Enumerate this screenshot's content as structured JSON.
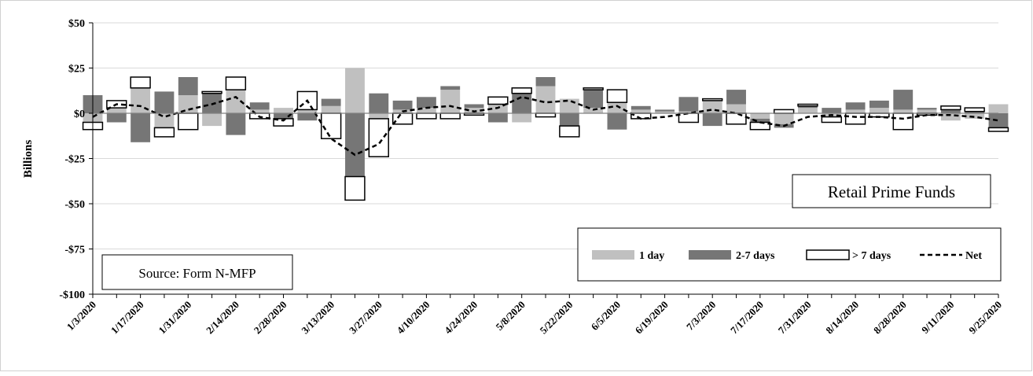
{
  "chart_data": {
    "type": "bar",
    "stacked": true,
    "ylabel": "Billions",
    "ylim": [
      -100,
      50
    ],
    "yticks": [
      50,
      25,
      0,
      -25,
      -50,
      -75,
      -100
    ],
    "ytick_labels": [
      "$50",
      "$25",
      "$0",
      "-$25",
      "-$50",
      "-$75",
      "-$100"
    ],
    "x_labels": [
      "1/3/2020",
      "1/17/2020",
      "1/31/2020",
      "2/14/2020",
      "2/28/2020",
      "3/13/2020",
      "3/27/2020",
      "4/10/2020",
      "4/24/2020",
      "5/8/2020",
      "5/22/2020",
      "6/5/2020",
      "6/19/2020",
      "7/3/2020",
      "7/17/2020",
      "7/31/2020",
      "8/14/2020",
      "8/28/2020",
      "9/11/2020",
      "9/25/2020"
    ],
    "categories": [
      "1/3/2020",
      "1/10/2020",
      "1/17/2020",
      "1/24/2020",
      "1/31/2020",
      "2/7/2020",
      "2/14/2020",
      "2/21/2020",
      "2/28/2020",
      "3/6/2020",
      "3/13/2020",
      "3/20/2020",
      "3/27/2020",
      "4/3/2020",
      "4/10/2020",
      "4/17/2020",
      "4/24/2020",
      "5/1/2020",
      "5/8/2020",
      "5/15/2020",
      "5/22/2020",
      "5/29/2020",
      "6/5/2020",
      "6/12/2020",
      "6/19/2020",
      "6/26/2020",
      "7/3/2020",
      "7/10/2020",
      "7/17/2020",
      "7/24/2020",
      "7/31/2020",
      "8/7/2020",
      "8/14/2020",
      "8/21/2020",
      "8/28/2020",
      "9/4/2020",
      "9/11/2020",
      "9/18/2020",
      "9/25/2020"
    ],
    "series": [
      {
        "name": "1 day",
        "kind": "bar",
        "color": "#c0c0c0",
        "values": [
          -5,
          3,
          14,
          -8,
          10,
          -7,
          13,
          2,
          3,
          2,
          4,
          25,
          -3,
          2,
          3,
          13,
          3,
          5,
          -5,
          15,
          8,
          3,
          6,
          2,
          1,
          1,
          7,
          5,
          -3,
          -6,
          3,
          -2,
          2,
          3,
          2,
          2,
          -4,
          -3,
          5
        ]
      },
      {
        "name": "2-7 days",
        "kind": "bar",
        "color": "#767676",
        "values": [
          10,
          -5,
          -16,
          12,
          10,
          11,
          -12,
          4,
          -3,
          -4,
          4,
          -35,
          11,
          5,
          6,
          2,
          2,
          -5,
          11,
          5,
          -7,
          10,
          -9,
          2,
          1,
          8,
          -7,
          8,
          -2,
          -2,
          1,
          3,
          4,
          4,
          11,
          1,
          2,
          1,
          -8
        ]
      },
      {
        "name": "> 7 days",
        "kind": "bar",
        "color": "#ffffff",
        "values": [
          -4,
          4,
          6,
          -5,
          -9,
          1,
          7,
          -3,
          -4,
          10,
          -14,
          -13,
          -21,
          -6,
          -3,
          -3,
          -1,
          4,
          3,
          -2,
          -6,
          1,
          7,
          -3,
          0,
          -5,
          1,
          -6,
          -4,
          2,
          1,
          -3,
          -6,
          -2,
          -9,
          -1,
          2,
          2,
          -2
        ]
      },
      {
        "name": "Net",
        "kind": "line",
        "color": "#000000",
        "values": [
          -2,
          5,
          4,
          -2,
          2,
          5,
          9,
          -2,
          -4,
          7,
          -14,
          -23,
          -17,
          1,
          3,
          4,
          1,
          3,
          9,
          6,
          7,
          2,
          4,
          -3,
          -2,
          0,
          2,
          0,
          -5,
          -7,
          -2,
          -1,
          -2,
          -2,
          -3,
          -1,
          -1,
          -2,
          -4
        ]
      }
    ],
    "legend": {
      "entries": [
        "1 day",
        "2-7 days",
        "> 7 days",
        "Net"
      ],
      "placement": "bottom-right"
    },
    "annotations": {
      "title_box": "Retail Prime Funds",
      "source_box": "Source: Form N-MFP"
    },
    "grid": {
      "horizontal": true,
      "vertical": false
    }
  }
}
